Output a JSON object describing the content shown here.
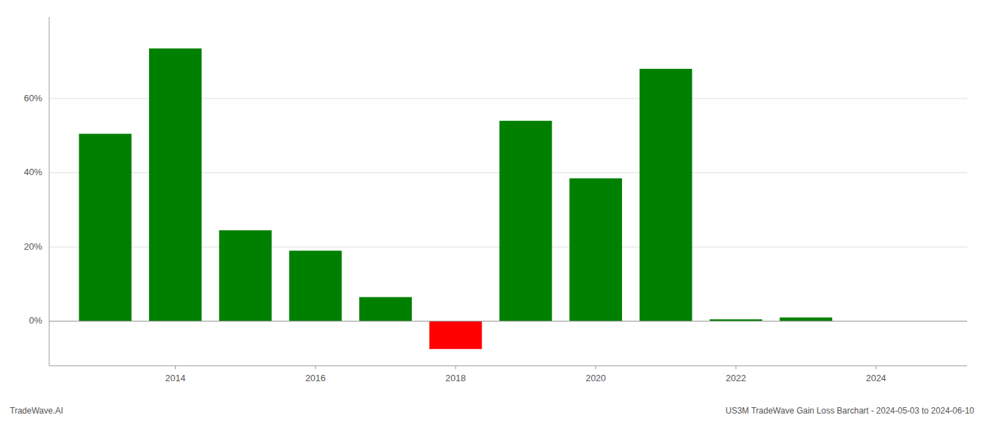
{
  "chart_data": {
    "type": "bar",
    "title": "US3M TradeWave Gain Loss Barchart - 2024-05-03 to 2024-06-10",
    "annotations": [
      "TradeWave.AI"
    ],
    "x": [
      2013,
      2014,
      2015,
      2016,
      2017,
      2018,
      2019,
      2020,
      2021,
      2022,
      2023,
      2024
    ],
    "values": [
      0.505,
      0.735,
      0.245,
      0.19,
      0.065,
      -0.075,
      0.54,
      0.385,
      0.68,
      0.005,
      0.01,
      0
    ],
    "colors": [
      "#008000",
      "#008000",
      "#008000",
      "#008000",
      "#008000",
      "#ff0000",
      "#008000",
      "#008000",
      "#008000",
      "#008000",
      "#008000",
      "#008000"
    ],
    "xlim": [
      2012.2,
      2025.3
    ],
    "xticks": [
      2014,
      2016,
      2018,
      2020,
      2022,
      2024
    ],
    "ylim": [
      -0.12,
      0.82
    ],
    "yticks": [
      {
        "value": 0.0,
        "label": "0%"
      },
      {
        "value": 0.2,
        "label": "20%"
      },
      {
        "value": 0.4,
        "label": "40%"
      },
      {
        "value": 0.6,
        "label": "60%"
      }
    ],
    "grid": true
  }
}
